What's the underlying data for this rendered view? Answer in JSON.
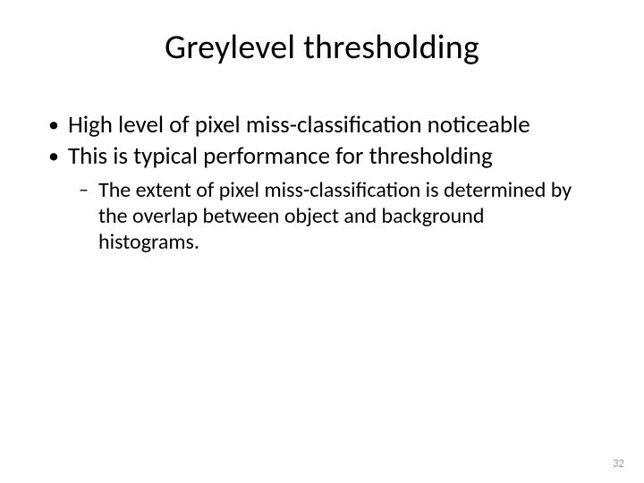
{
  "title": "Greylevel thresholding",
  "bullets": {
    "b1": "High level of pixel miss-classification noticeable",
    "b2": "This is typical performance for thresholding",
    "b2_sub1": "The extent of pixel miss-classification is determined by the overlap between object and background histograms."
  },
  "markers": {
    "dot": "•",
    "dash": "–"
  },
  "page_number": "32",
  "style": {
    "background_color": "#ffffff",
    "text_color": "#000000",
    "title_fontsize": 38,
    "bullet_l1_fontsize": 27,
    "bullet_l2_fontsize": 24,
    "page_number_color": "#9a9a9a",
    "page_number_fontsize": 13
  }
}
